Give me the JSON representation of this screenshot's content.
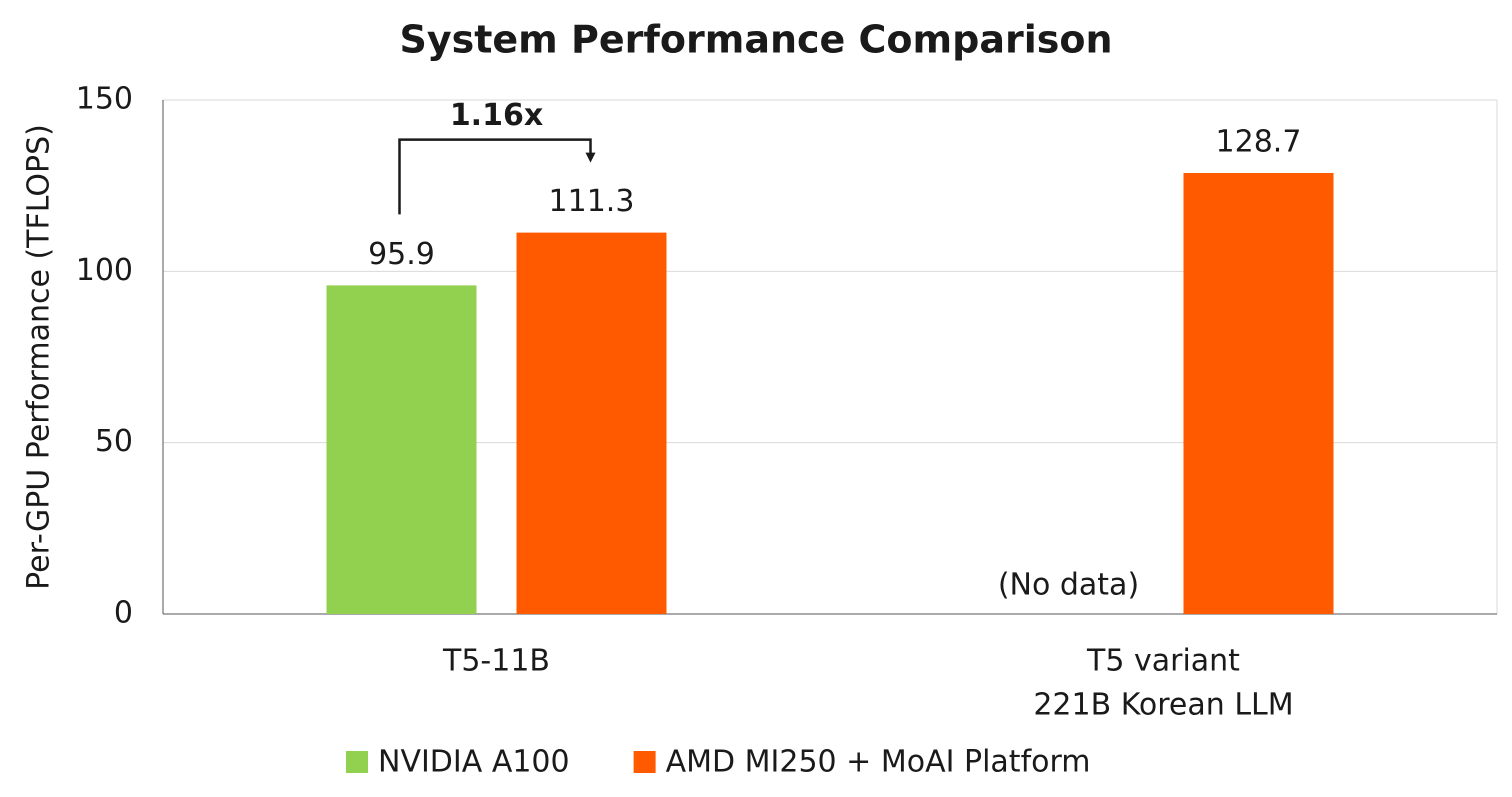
{
  "chart_data": {
    "type": "bar",
    "title": "System Performance Comparison",
    "y_label": "Per-GPU Performance (TFLOPS)",
    "categories": [
      [
        "T5-11B"
      ],
      [
        "T5 variant",
        "221B Korean LLM"
      ]
    ],
    "series": [
      {
        "name": "NVIDIA A100",
        "color": "#92d050",
        "values": [
          95.9,
          null
        ]
      },
      {
        "name": "AMD MI250 + MoAI Platform",
        "color": "#ff5a00",
        "values": [
          111.3,
          128.7
        ]
      }
    ],
    "ylim": [
      0,
      150
    ],
    "yticks": [
      0,
      50,
      100,
      150
    ],
    "grid": true,
    "annotations": [
      {
        "text": "1.16x"
      },
      {
        "text": "(No data)"
      }
    ]
  }
}
